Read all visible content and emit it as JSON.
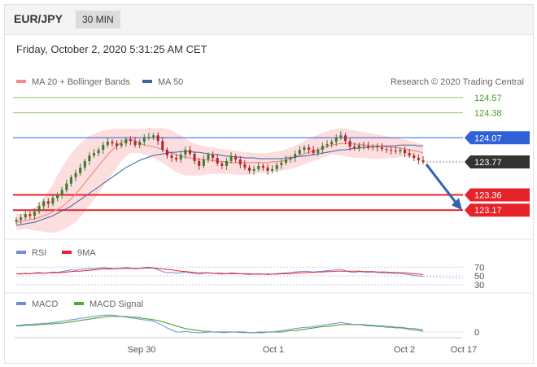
{
  "header": {
    "pair": "EUR/JPY",
    "timeframe": "30 MIN"
  },
  "datetime": "Friday, October 2, 2020 5:31:25 AM CET",
  "credit": "Research © 2020 Trading Central",
  "colors": {
    "ma20": "#f48a8a",
    "band": "#fbd3d3",
    "ma50": "#3a62a8",
    "resistance_green": "#8ec06c",
    "pivot_blue": "#2f62d6",
    "support_red": "#e8222a",
    "last_price": "#333333",
    "candle_up": "#3f7a32",
    "candle_down": "#b0272b",
    "rsi": "#6d8fd9",
    "rsi_9ma": "#e8222a",
    "macd": "#6d8fd9",
    "macd_signal": "#56a832",
    "arrow": "#2f62b0"
  },
  "chart_data": [
    {
      "type": "line",
      "name": "price",
      "legend": [
        {
          "label": "MA 20 + Bollinger Bands",
          "color": "#f48a8a"
        },
        {
          "label": "MA 50",
          "color": "#3a62a8"
        }
      ],
      "x_ticks": [
        "Sep 30",
        "Oct 1",
        "Oct 2",
        "Oct 17"
      ],
      "ylim": [
        122.97,
        124.67
      ],
      "levels": [
        {
          "value": 124.57,
          "label": "124.57",
          "style": "resistance-line",
          "color": "#8ec06c"
        },
        {
          "value": 124.38,
          "label": "124.38",
          "style": "resistance-line",
          "color": "#8ec06c"
        },
        {
          "value": 124.07,
          "label": "124.07",
          "style": "pivot",
          "color": "#2f62d6"
        },
        {
          "value": 123.77,
          "label": "123.77",
          "style": "last",
          "color": "#333333"
        },
        {
          "value": 123.36,
          "label": "123.36",
          "style": "support",
          "color": "#e8222a"
        },
        {
          "value": 123.17,
          "label": "123.17",
          "style": "support",
          "color": "#e8222a"
        }
      ],
      "close": [
        123.05,
        123.08,
        123.12,
        123.1,
        123.15,
        123.22,
        123.28,
        123.25,
        123.32,
        123.36,
        123.42,
        123.5,
        123.58,
        123.63,
        123.7,
        123.78,
        123.85,
        123.88,
        123.92,
        123.98,
        124.02,
        124.0,
        123.97,
        124.0,
        124.05,
        124.03,
        123.98,
        124.02,
        124.07,
        124.08,
        124.1,
        124.03,
        123.92,
        123.85,
        123.82,
        123.8,
        123.86,
        123.92,
        123.87,
        123.78,
        123.72,
        123.8,
        123.86,
        123.82,
        123.75,
        123.72,
        123.78,
        123.84,
        123.8,
        123.74,
        123.7,
        123.66,
        123.68,
        123.72,
        123.7,
        123.66,
        123.68,
        123.73,
        123.76,
        123.8,
        123.82,
        123.87,
        123.92,
        123.95,
        123.92,
        123.88,
        123.92,
        123.97,
        123.99,
        124.02,
        124.07,
        124.1,
        124.03,
        123.96,
        123.94,
        123.98,
        123.97,
        123.95,
        123.96,
        123.95,
        123.93,
        123.92,
        123.91,
        123.9,
        123.92,
        123.88,
        123.85,
        123.82,
        123.79,
        123.77
      ],
      "ma20": [
        123.02,
        123.03,
        123.04,
        123.05,
        123.06,
        123.08,
        123.1,
        123.12,
        123.15,
        123.18,
        123.21,
        123.26,
        123.31,
        123.37,
        123.44,
        123.51,
        123.58,
        123.65,
        123.72,
        123.79,
        123.86,
        123.92,
        123.97,
        124.01,
        124.04,
        124.05,
        124.03,
        124.0,
        123.98,
        123.97,
        123.96,
        123.94,
        123.92,
        123.9,
        123.88,
        123.86,
        123.84,
        123.83,
        123.82,
        123.81,
        123.8,
        123.8,
        123.79,
        123.79,
        123.78,
        123.77,
        123.77,
        123.76,
        123.76,
        123.76,
        123.76,
        123.76,
        123.76,
        123.76,
        123.76,
        123.76,
        123.77,
        123.77,
        123.78,
        123.79,
        123.81,
        123.83,
        123.85,
        123.87,
        123.89,
        123.91,
        123.92,
        123.94,
        123.96,
        123.98,
        123.99,
        124.0,
        124.0,
        124.0,
        123.99,
        123.99,
        123.98,
        123.98,
        123.97,
        123.97,
        123.96,
        123.96,
        123.95,
        123.95,
        123.94,
        123.93,
        123.92,
        123.91,
        123.9,
        123.88
      ],
      "band_upper": [
        123.12,
        123.13,
        123.14,
        123.17,
        123.2,
        123.25,
        123.32,
        123.4,
        123.5,
        123.6,
        123.7,
        123.79,
        123.87,
        123.94,
        124.0,
        124.05,
        124.09,
        124.12,
        124.14,
        124.16,
        124.17,
        124.18,
        124.18,
        124.18,
        124.18,
        124.18,
        124.18,
        124.18,
        124.18,
        124.19,
        124.19,
        124.19,
        124.19,
        124.18,
        124.16,
        124.13,
        124.1,
        124.06,
        124.02,
        124.0,
        123.98,
        123.97,
        123.96,
        123.95,
        123.94,
        123.93,
        123.92,
        123.92,
        123.91,
        123.9,
        123.89,
        123.89,
        123.88,
        123.88,
        123.88,
        123.88,
        123.89,
        123.9,
        123.91,
        123.93,
        123.95,
        123.97,
        124.0,
        124.03,
        124.06,
        124.08,
        124.11,
        124.13,
        124.15,
        124.17,
        124.18,
        124.19,
        124.18,
        124.17,
        124.16,
        124.15,
        124.14,
        124.13,
        124.12,
        124.11,
        124.1,
        124.09,
        124.08,
        124.07,
        124.06,
        124.05,
        124.03,
        124.02,
        124.0,
        123.98
      ],
      "band_lower": [
        122.92,
        122.93,
        122.94,
        122.93,
        122.92,
        122.91,
        122.9,
        122.89,
        122.89,
        122.9,
        122.92,
        122.95,
        122.98,
        123.02,
        123.08,
        123.15,
        123.23,
        123.3,
        123.38,
        123.46,
        123.54,
        123.62,
        123.7,
        123.78,
        123.84,
        123.88,
        123.88,
        123.88,
        123.86,
        123.84,
        123.82,
        123.79,
        123.76,
        123.72,
        123.68,
        123.64,
        123.62,
        123.6,
        123.6,
        123.6,
        123.6,
        123.61,
        123.62,
        123.62,
        123.62,
        123.62,
        123.62,
        123.62,
        123.61,
        123.61,
        123.61,
        123.61,
        123.62,
        123.63,
        123.63,
        123.63,
        123.64,
        123.65,
        123.66,
        123.67,
        123.68,
        123.7,
        123.72,
        123.74,
        123.76,
        123.78,
        123.8,
        123.82,
        123.84,
        123.86,
        123.86,
        123.85,
        123.84,
        123.83,
        123.82,
        123.82,
        123.82,
        123.81,
        123.81,
        123.81,
        123.81,
        123.82,
        123.82,
        123.82,
        123.83,
        123.84,
        123.83,
        123.82,
        123.81,
        123.8
      ],
      "ma50": [
        122.98,
        122.99,
        123.0,
        123.01,
        123.02,
        123.04,
        123.06,
        123.08,
        123.1,
        123.13,
        123.16,
        123.19,
        123.22,
        123.26,
        123.3,
        123.34,
        123.38,
        123.42,
        123.46,
        123.5,
        123.54,
        123.58,
        123.62,
        123.66,
        123.7,
        123.73,
        123.76,
        123.79,
        123.81,
        123.83,
        123.85,
        123.86,
        123.87,
        123.88,
        123.89,
        123.89,
        123.9,
        123.9,
        123.9,
        123.89,
        123.89,
        123.88,
        123.87,
        123.86,
        123.86,
        123.85,
        123.84,
        123.84,
        123.83,
        123.83,
        123.82,
        123.82,
        123.82,
        123.81,
        123.81,
        123.81,
        123.81,
        123.81,
        123.81,
        123.82,
        123.82,
        123.83,
        123.84,
        123.84,
        123.85,
        123.86,
        123.87,
        123.88,
        123.89,
        123.9,
        123.91,
        123.92,
        123.92,
        123.93,
        123.94,
        123.94,
        123.95,
        123.95,
        123.96,
        123.96,
        123.97,
        123.97,
        123.97,
        123.97,
        123.98,
        123.98,
        123.98,
        123.98,
        123.97,
        123.97
      ],
      "projection": {
        "from": 123.77,
        "to": 123.17
      }
    },
    {
      "type": "line",
      "name": "RSI",
      "legend": [
        {
          "label": "RSI",
          "color": "#6d8fd9"
        },
        {
          "label": "9MA",
          "color": "#e8222a"
        }
      ],
      "ylim": [
        26,
        78
      ],
      "levels": [
        {
          "value": 70,
          "label": "70"
        },
        {
          "value": 50,
          "label": "50"
        },
        {
          "value": 30,
          "label": "30"
        }
      ],
      "rsi": [
        55,
        54,
        56,
        55,
        57,
        58,
        56,
        57,
        59,
        58,
        60,
        62,
        64,
        63,
        65,
        66,
        67,
        66,
        68,
        69,
        68,
        67,
        66,
        68,
        69,
        68,
        66,
        67,
        69,
        70,
        68,
        64,
        60,
        57,
        58,
        56,
        57,
        59,
        57,
        55,
        54,
        56,
        57,
        56,
        55,
        54,
        55,
        57,
        56,
        55,
        54,
        53,
        54,
        55,
        54,
        53,
        54,
        55,
        56,
        57,
        58,
        59,
        60,
        61,
        60,
        59,
        60,
        61,
        62,
        63,
        64,
        65,
        62,
        59,
        58,
        60,
        59,
        58,
        59,
        58,
        57,
        56,
        56,
        55,
        56,
        54,
        53,
        51,
        50,
        49
      ],
      "ma9": [
        55,
        55,
        55,
        55,
        56,
        56,
        56,
        57,
        57,
        57,
        58,
        59,
        60,
        61,
        61,
        62,
        63,
        64,
        65,
        66,
        66,
        66,
        67,
        67,
        67,
        67,
        67,
        67,
        68,
        68,
        68,
        67,
        66,
        65,
        64,
        62,
        61,
        60,
        59,
        58,
        57,
        57,
        57,
        56,
        56,
        56,
        55,
        55,
        55,
        55,
        55,
        55,
        54,
        54,
        54,
        54,
        54,
        54,
        55,
        55,
        55,
        56,
        57,
        57,
        58,
        58,
        59,
        59,
        60,
        60,
        61,
        61,
        61,
        61,
        61,
        61,
        60,
        60,
        60,
        59,
        59,
        59,
        58,
        58,
        57,
        57,
        56,
        55,
        54,
        53
      ]
    },
    {
      "type": "line",
      "name": "MACD",
      "legend": [
        {
          "label": "MACD",
          "color": "#6d8fd9"
        },
        {
          "label": "MACD Signal",
          "color": "#56a832"
        }
      ],
      "ylim": [
        -0.06,
        0.3
      ],
      "levels": [
        {
          "value": 0,
          "label": "0"
        }
      ],
      "macd": [
        0.1,
        0.1,
        0.11,
        0.11,
        0.12,
        0.12,
        0.13,
        0.13,
        0.14,
        0.15,
        0.16,
        0.17,
        0.18,
        0.19,
        0.2,
        0.21,
        0.22,
        0.23,
        0.24,
        0.25,
        0.25,
        0.25,
        0.24,
        0.23,
        0.22,
        0.21,
        0.2,
        0.19,
        0.18,
        0.17,
        0.16,
        0.13,
        0.1,
        0.06,
        0.03,
        0.0,
        0.0,
        0.01,
        0.0,
        -0.01,
        -0.01,
        -0.01,
        0.0,
        0.0,
        0.0,
        -0.01,
        -0.01,
        0.0,
        0.0,
        -0.01,
        -0.01,
        -0.01,
        -0.01,
        0.0,
        0.0,
        0.0,
        0.0,
        0.01,
        0.02,
        0.03,
        0.04,
        0.05,
        0.06,
        0.07,
        0.07,
        0.08,
        0.09,
        0.1,
        0.11,
        0.12,
        0.13,
        0.14,
        0.13,
        0.12,
        0.11,
        0.11,
        0.1,
        0.09,
        0.09,
        0.08,
        0.08,
        0.07,
        0.07,
        0.06,
        0.06,
        0.05,
        0.04,
        0.03,
        0.02,
        0.01
      ],
      "signal": [
        0.09,
        0.09,
        0.1,
        0.1,
        0.1,
        0.11,
        0.11,
        0.12,
        0.12,
        0.13,
        0.13,
        0.14,
        0.15,
        0.16,
        0.17,
        0.18,
        0.19,
        0.2,
        0.21,
        0.22,
        0.23,
        0.23,
        0.23,
        0.23,
        0.23,
        0.22,
        0.22,
        0.21,
        0.2,
        0.19,
        0.18,
        0.17,
        0.15,
        0.13,
        0.11,
        0.09,
        0.07,
        0.05,
        0.04,
        0.03,
        0.02,
        0.01,
        0.01,
        0.0,
        0.0,
        0.0,
        0.0,
        0.0,
        0.0,
        0.0,
        0.0,
        -0.01,
        -0.01,
        -0.01,
        -0.01,
        0.0,
        0.0,
        0.0,
        0.0,
        0.01,
        0.02,
        0.02,
        0.03,
        0.04,
        0.05,
        0.06,
        0.07,
        0.08,
        0.08,
        0.09,
        0.1,
        0.11,
        0.11,
        0.11,
        0.11,
        0.11,
        0.11,
        0.1,
        0.1,
        0.09,
        0.09,
        0.08,
        0.08,
        0.07,
        0.07,
        0.06,
        0.05,
        0.05,
        0.04,
        0.03
      ]
    }
  ]
}
